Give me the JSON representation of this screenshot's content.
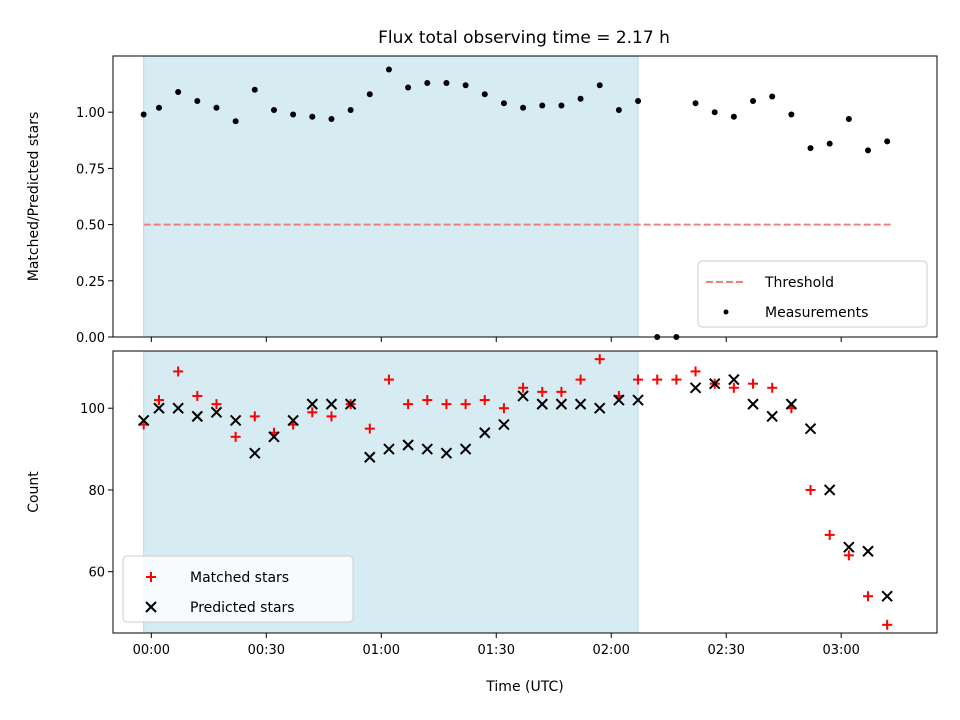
{
  "chart_data": [
    {
      "type": "scatter",
      "title": "Flux total observing time = 2.17 h",
      "xlabel": "",
      "ylabel": "Matched/Predicted stars",
      "ylim": [
        0,
        1.25
      ],
      "xlim": [
        "23:50",
        "03:25"
      ],
      "yticks": [
        "0.00",
        "0.25",
        "0.50",
        "0.75",
        "1.00"
      ],
      "legend": {
        "placement": "lower-right",
        "entries": [
          "Threshold",
          "Measurements"
        ]
      },
      "highlight_span": [
        "23:58",
        "02:07"
      ],
      "threshold": {
        "name": "Threshold",
        "value": 0.5,
        "x": [
          "23:58",
          "03:13"
        ],
        "color": "#f08080"
      },
      "series": [
        {
          "name": "Measurements",
          "color": "#000000",
          "marker": "dot",
          "x": [
            "23:58",
            "00:02",
            "00:07",
            "00:12",
            "00:17",
            "00:22",
            "00:27",
            "00:32",
            "00:37",
            "00:42",
            "00:47",
            "00:52",
            "00:57",
            "01:02",
            "01:07",
            "01:12",
            "01:17",
            "01:22",
            "01:27",
            "01:32",
            "01:37",
            "01:42",
            "01:47",
            "01:52",
            "01:57",
            "02:02",
            "02:07",
            "02:12",
            "02:17",
            "02:22",
            "02:27",
            "02:32",
            "02:37",
            "02:42",
            "02:47",
            "02:52",
            "02:57",
            "03:02",
            "03:07",
            "03:12"
          ],
          "values": [
            0.99,
            1.02,
            1.09,
            1.05,
            1.02,
            0.96,
            1.1,
            1.01,
            0.99,
            0.98,
            0.97,
            1.01,
            1.08,
            1.19,
            1.11,
            1.13,
            1.13,
            1.12,
            1.08,
            1.04,
            1.02,
            1.03,
            1.03,
            1.06,
            1.12,
            1.01,
            1.05,
            0.0,
            0.0,
            1.04,
            1.0,
            0.98,
            1.05,
            1.07,
            0.99,
            0.84,
            0.86,
            0.97,
            0.83,
            0.87
          ]
        }
      ]
    },
    {
      "type": "scatter",
      "title": "",
      "xlabel": "Time (UTC)",
      "ylabel": "Count",
      "ylim": [
        45,
        114
      ],
      "xlim": [
        "23:50",
        "03:25"
      ],
      "xticks": [
        "00:00",
        "00:30",
        "01:00",
        "01:30",
        "02:00",
        "02:30",
        "03:00"
      ],
      "yticks": [
        "60",
        "80",
        "100"
      ],
      "legend": {
        "placement": "lower-left",
        "entries": [
          "Matched stars",
          "Predicted stars"
        ]
      },
      "highlight_span": [
        "23:58",
        "02:07"
      ],
      "series": [
        {
          "name": "Matched stars",
          "color": "#ff0000",
          "marker": "plus",
          "x": [
            "23:58",
            "00:02",
            "00:07",
            "00:12",
            "00:17",
            "00:22",
            "00:27",
            "00:32",
            "00:37",
            "00:42",
            "00:47",
            "00:52",
            "00:57",
            "01:02",
            "01:07",
            "01:12",
            "01:17",
            "01:22",
            "01:27",
            "01:32",
            "01:37",
            "01:42",
            "01:47",
            "01:52",
            "01:57",
            "02:02",
            "02:07",
            "02:12",
            "02:17",
            "02:22",
            "02:27",
            "02:32",
            "02:37",
            "02:42",
            "02:47",
            "02:52",
            "02:57",
            "03:02",
            "03:07",
            "03:12"
          ],
          "values": [
            96,
            102,
            109,
            103,
            101,
            93,
            98,
            94,
            96,
            99,
            98,
            101,
            95,
            107,
            101,
            102,
            101,
            101,
            102,
            100,
            105,
            104,
            104,
            107,
            112,
            103,
            107,
            107,
            107,
            109,
            106,
            105,
            106,
            105,
            100,
            80,
            69,
            64,
            54,
            47
          ]
        },
        {
          "name": "Predicted stars",
          "color": "#000000",
          "marker": "x",
          "x": [
            "23:58",
            "00:02",
            "00:07",
            "00:12",
            "00:17",
            "00:22",
            "00:27",
            "00:32",
            "00:37",
            "00:42",
            "00:47",
            "00:52",
            "00:57",
            "01:02",
            "01:07",
            "01:12",
            "01:17",
            "01:22",
            "01:27",
            "01:32",
            "01:37",
            "01:42",
            "01:47",
            "01:52",
            "01:57",
            "02:02",
            "02:07",
            "02:22",
            "02:27",
            "02:32",
            "02:37",
            "02:42",
            "02:47",
            "02:52",
            "02:57",
            "03:02",
            "03:07",
            "03:12"
          ],
          "values": [
            97,
            100,
            100,
            98,
            99,
            97,
            89,
            93,
            97,
            101,
            101,
            101,
            88,
            90,
            91,
            90,
            89,
            90,
            94,
            96,
            103,
            101,
            101,
            101,
            100,
            102,
            102,
            105,
            106,
            107,
            101,
            98,
            101,
            95,
            80,
            66,
            65,
            54
          ]
        }
      ]
    }
  ]
}
